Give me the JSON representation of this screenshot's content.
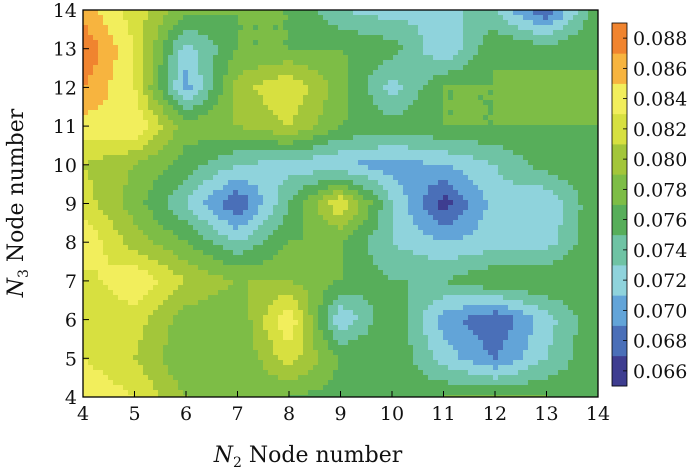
{
  "chart_data": {
    "type": "heatmap",
    "subtype": "filled-contour",
    "title": "",
    "xlabel": {
      "symbol": "N",
      "sub": "2",
      "text": " Node number"
    },
    "ylabel": {
      "symbol": "N",
      "sub": "3",
      "text": " Node number"
    },
    "x": [
      4,
      5,
      6,
      7,
      8,
      9,
      10,
      11,
      12,
      13,
      14
    ],
    "y": [
      4,
      5,
      6,
      7,
      8,
      9,
      10,
      11,
      12,
      13,
      14
    ],
    "xlim": [
      4,
      14
    ],
    "ylim": [
      4,
      14
    ],
    "xticks": [
      "4",
      "5",
      "6",
      "7",
      "8",
      "9",
      "10",
      "11",
      "12",
      "13",
      "14"
    ],
    "yticks": [
      "4",
      "5",
      "6",
      "7",
      "8",
      "9",
      "10",
      "11",
      "12",
      "13",
      "14"
    ],
    "z_rows_from_y4": [
      [
        0.085,
        0.083,
        0.079,
        0.077,
        0.077,
        0.076,
        0.076,
        0.077,
        0.077,
        0.077,
        0.076
      ],
      [
        0.083,
        0.081,
        0.077,
        0.077,
        0.082,
        0.077,
        0.077,
        0.072,
        0.069,
        0.073,
        0.077
      ],
      [
        0.081,
        0.082,
        0.078,
        0.077,
        0.085,
        0.071,
        0.077,
        0.07,
        0.067,
        0.072,
        0.077
      ],
      [
        0.082,
        0.085,
        0.081,
        0.079,
        0.079,
        0.077,
        0.075,
        0.075,
        0.077,
        0.077,
        0.077
      ],
      [
        0.085,
        0.08,
        0.077,
        0.073,
        0.077,
        0.077,
        0.073,
        0.071,
        0.072,
        0.072,
        0.077
      ],
      [
        0.082,
        0.078,
        0.073,
        0.067,
        0.075,
        0.083,
        0.073,
        0.066,
        0.072,
        0.071,
        0.077
      ],
      [
        0.081,
        0.079,
        0.076,
        0.073,
        0.072,
        0.071,
        0.07,
        0.071,
        0.073,
        0.076,
        0.077
      ],
      [
        0.084,
        0.085,
        0.078,
        0.079,
        0.081,
        0.077,
        0.076,
        0.077,
        0.077,
        0.077,
        0.077
      ],
      [
        0.087,
        0.083,
        0.07,
        0.08,
        0.083,
        0.078,
        0.072,
        0.077,
        0.077,
        0.078,
        0.077
      ],
      [
        0.089,
        0.083,
        0.072,
        0.077,
        0.077,
        0.077,
        0.076,
        0.071,
        0.077,
        0.076,
        0.077
      ],
      [
        0.086,
        0.082,
        0.078,
        0.077,
        0.077,
        0.073,
        0.072,
        0.073,
        0.073,
        0.067,
        0.077
      ]
    ],
    "colorbar": {
      "min": 0.065,
      "max": 0.089,
      "levels": [
        0.065,
        0.067,
        0.069,
        0.071,
        0.073,
        0.075,
        0.077,
        0.079,
        0.081,
        0.083,
        0.085,
        0.087,
        0.089
      ],
      "colors": [
        "#3e3d90",
        "#4a6fb8",
        "#62a4d8",
        "#8fd3dc",
        "#6fc3a4",
        "#57ae5a",
        "#7dbd46",
        "#a3c63a",
        "#d7e040",
        "#f2ee5c",
        "#f7b43f",
        "#f0842f",
        "#e64b2e"
      ],
      "tick_labels": [
        "0.088",
        "0.086",
        "0.084",
        "0.082",
        "0.080",
        "0.078",
        "0.076",
        "0.074",
        "0.072",
        "0.070",
        "0.068",
        "0.066"
      ],
      "tick_values": [
        0.088,
        0.086,
        0.084,
        0.082,
        0.08,
        0.078,
        0.076,
        0.074,
        0.072,
        0.07,
        0.068,
        0.066
      ]
    },
    "grid": false,
    "legend": "right"
  }
}
